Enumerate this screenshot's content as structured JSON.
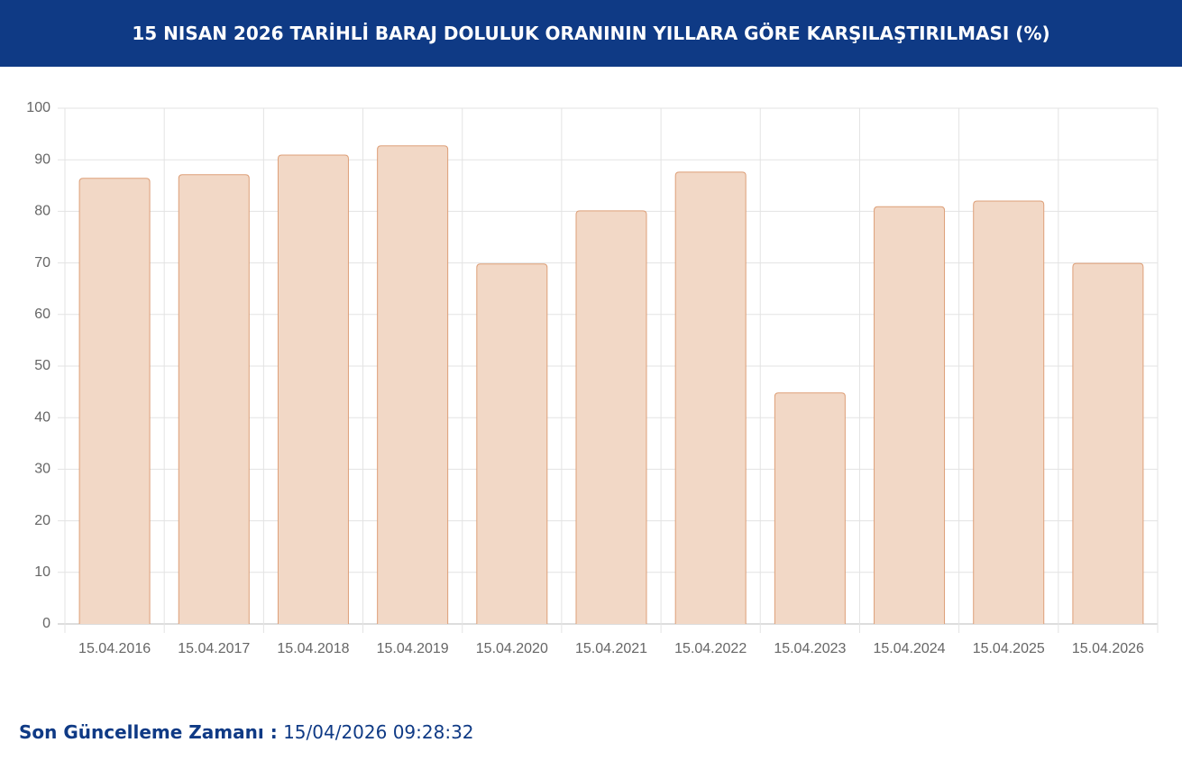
{
  "chart_data": {
    "type": "bar",
    "title": "15 NISAN 2026 TARİHLİ BARAJ DOLULUK ORANININ YILLARA GÖRE KARŞILAŞTIRILMASI (%)",
    "categories": [
      "15.04.2016",
      "15.04.2017",
      "15.04.2018",
      "15.04.2019",
      "15.04.2020",
      "15.04.2021",
      "15.04.2022",
      "15.04.2023",
      "15.04.2024",
      "15.04.2025",
      "15.04.2026"
    ],
    "values": [
      86.4,
      87.1,
      90.9,
      92.7,
      69.8,
      80.1,
      87.6,
      44.8,
      80.9,
      82.0,
      69.9
    ],
    "color": "#f2d8c6",
    "border_color": "#dd9f78",
    "ylim": [
      0,
      100
    ],
    "yticks": [
      0,
      10,
      20,
      30,
      40,
      50,
      60,
      70,
      80,
      90,
      100
    ],
    "grid": true
  },
  "footer": {
    "label": "Son Güncelleme Zamanı :",
    "value": "15/04/2026 09:28:32"
  }
}
